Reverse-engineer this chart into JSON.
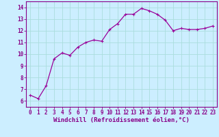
{
  "x": [
    0,
    1,
    2,
    3,
    4,
    5,
    6,
    7,
    8,
    9,
    10,
    11,
    12,
    13,
    14,
    15,
    16,
    17,
    18,
    19,
    20,
    21,
    22,
    23
  ],
  "y": [
    6.5,
    6.2,
    7.3,
    9.6,
    10.1,
    9.9,
    10.6,
    11.0,
    11.2,
    11.1,
    12.1,
    12.6,
    13.4,
    13.4,
    13.9,
    13.7,
    13.4,
    12.9,
    12.0,
    12.2,
    12.1,
    12.1,
    12.2,
    12.4
  ],
  "line_color": "#990099",
  "marker": "+",
  "bg_color": "#cceeff",
  "grid_color": "#aadddd",
  "xlabel": "Windchill (Refroidissement éolien,°C)",
  "xlim": [
    -0.5,
    23.5
  ],
  "ylim": [
    5.5,
    14.5
  ],
  "yticks": [
    6,
    7,
    8,
    9,
    10,
    11,
    12,
    13,
    14
  ],
  "xticks": [
    0,
    1,
    2,
    3,
    4,
    5,
    6,
    7,
    8,
    9,
    10,
    11,
    12,
    13,
    14,
    15,
    16,
    17,
    18,
    19,
    20,
    21,
    22,
    23
  ],
  "tick_label_fontsize": 5.5,
  "xlabel_fontsize": 6.5,
  "axis_label_color": "#880088",
  "tick_color": "#880088",
  "spine_color": "#880088",
  "line_width": 0.9,
  "marker_size": 3,
  "marker_edge_width": 0.8
}
